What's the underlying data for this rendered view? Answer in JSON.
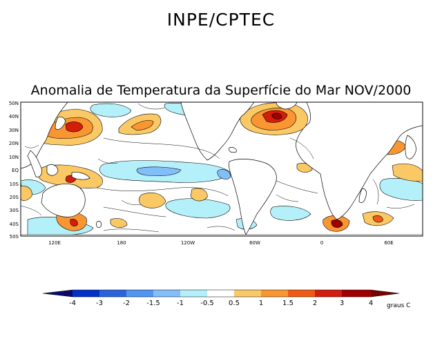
{
  "header": "INPE/CPTEC",
  "map": {
    "title": "Anomalia de Temperatura da Superfície do Mar NOV/2000",
    "lat_labels": [
      "50N",
      "40N",
      "30N",
      "20N",
      "10N",
      "EQ",
      "10S",
      "20S",
      "30S",
      "40S",
      "50S"
    ],
    "lon_labels": [
      "120E",
      "180",
      "120W",
      "60W",
      "0",
      "60E"
    ]
  },
  "colorbar": {
    "levels": [
      "-4",
      "-3",
      "-2",
      "-1.5",
      "-1",
      "-0.5",
      "0.5",
      "1",
      "1.5",
      "2",
      "3",
      "4"
    ],
    "colors": [
      "#0a0a6e",
      "#0032c8",
      "#2864dc",
      "#5096f0",
      "#82befa",
      "#b4f0fa",
      "#ffffff",
      "#fac864",
      "#fa9632",
      "#f05a14",
      "#d21e0a",
      "#a00000",
      "#780000"
    ],
    "units": "graus C"
  },
  "regions": [
    {
      "name": "kuroshio-warm",
      "cls": "warm1"
    },
    {
      "name": "ne-pacific-warm",
      "cls": "warm1"
    },
    {
      "name": "north-atlantic-warm",
      "cls": "warm3"
    },
    {
      "name": "equatorial-pacific-cool",
      "cls": "cool1"
    }
  ]
}
